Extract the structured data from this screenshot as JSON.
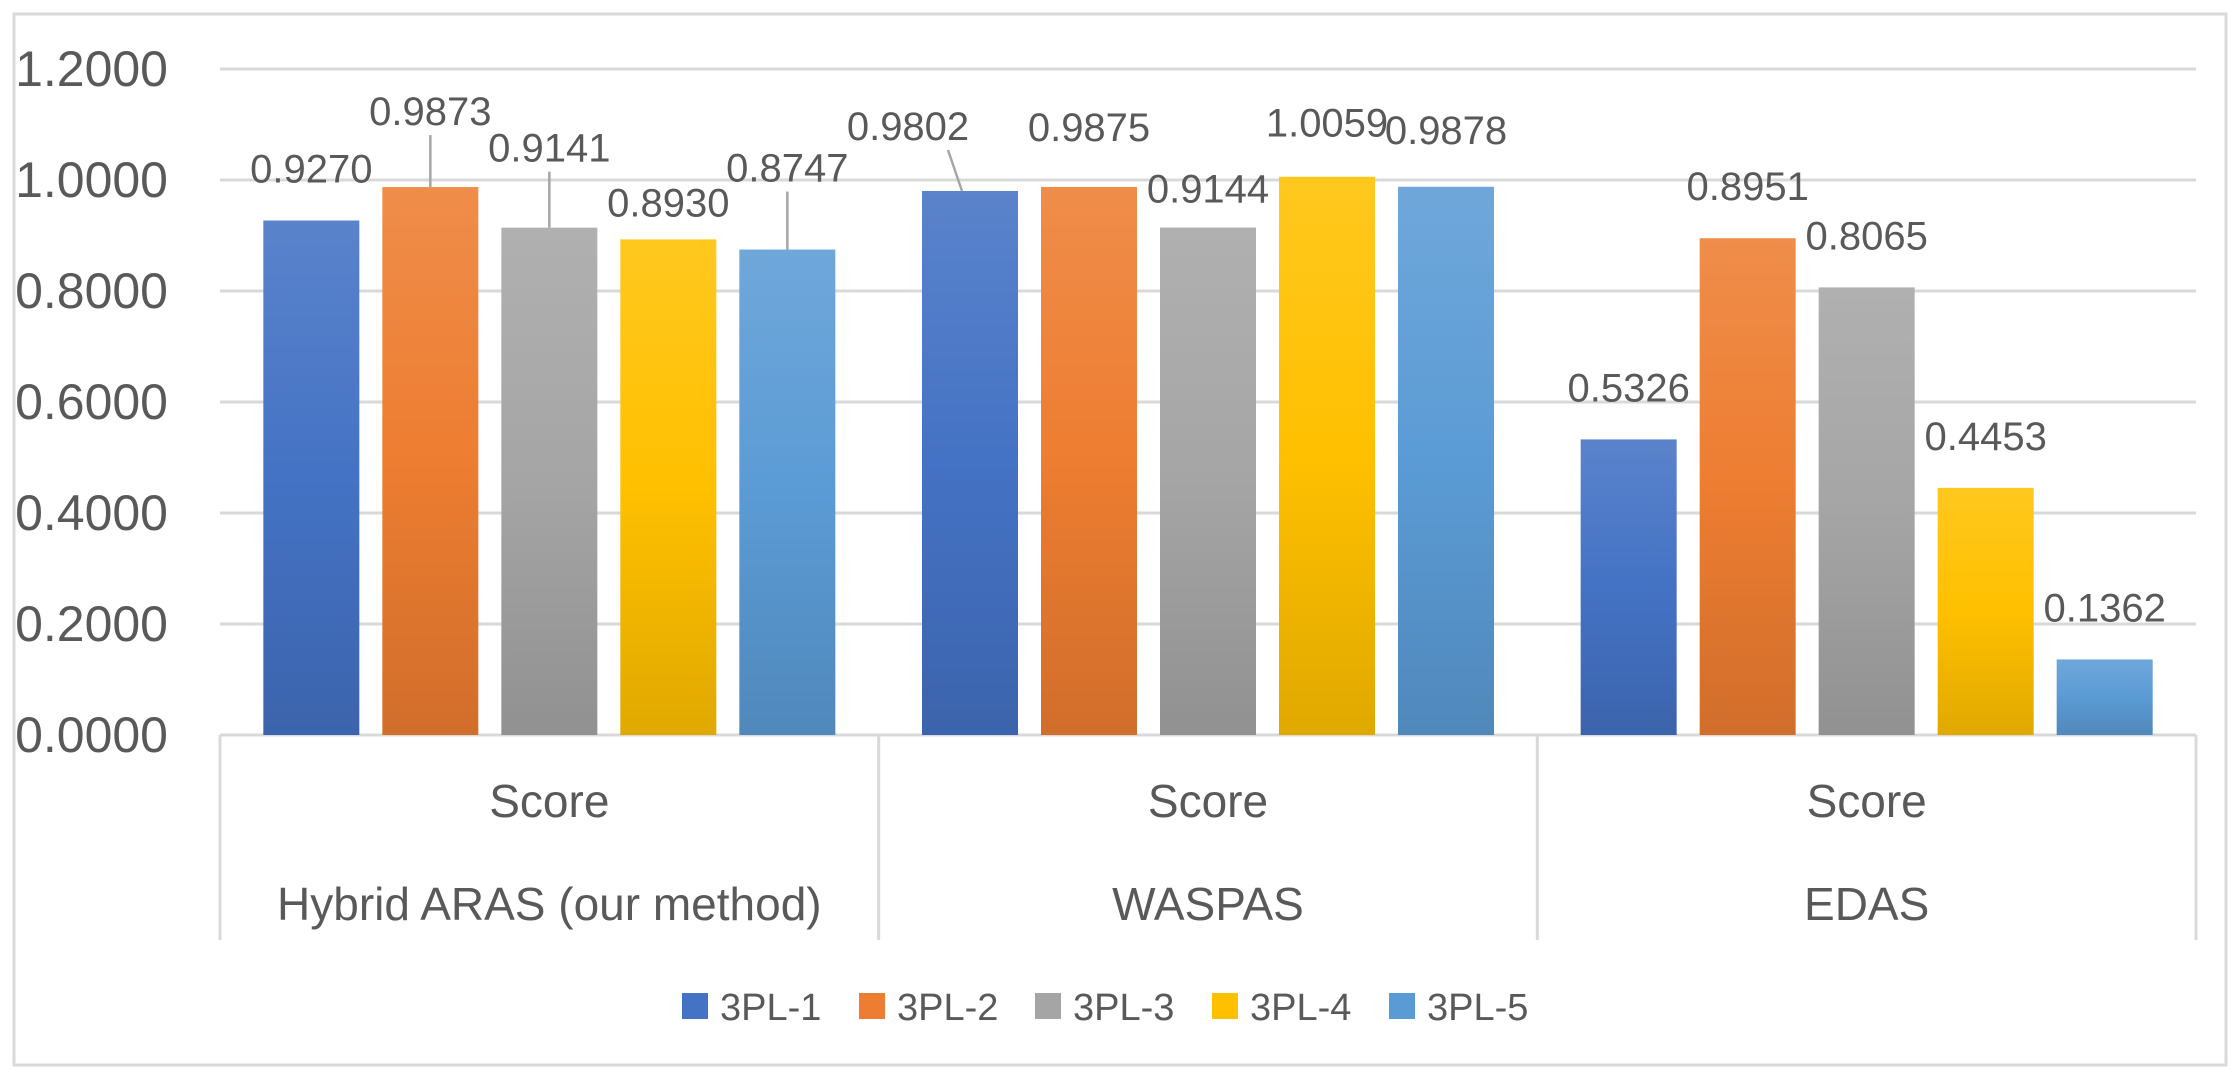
{
  "chart_data": {
    "type": "bar",
    "title": "",
    "xlabel": "",
    "ylabel": "",
    "ylim": [
      0,
      1.2
    ],
    "yticks": [
      "0.0000",
      "0.2000",
      "0.4000",
      "0.6000",
      "0.8000",
      "1.0000",
      "1.2000"
    ],
    "grid": true,
    "legend_position": "bottom",
    "groups": [
      {
        "category": "Score",
        "method": "Hybrid ARAS (our method)"
      },
      {
        "category": "Score",
        "method": "WASPAS"
      },
      {
        "category": "Score",
        "method": "EDAS"
      }
    ],
    "series": [
      {
        "name": "3PL-1",
        "color": "#4472C4",
        "values": [
          0.927,
          0.9802,
          0.5326
        ],
        "labels": [
          "0.9270",
          "0.9802",
          "0.5326"
        ]
      },
      {
        "name": "3PL-2",
        "color": "#ED7D31",
        "values": [
          0.9873,
          0.9875,
          0.8951
        ],
        "labels": [
          "0.9873",
          "0.9875",
          "0.8951"
        ]
      },
      {
        "name": "3PL-3",
        "color": "#A5A5A5",
        "values": [
          0.9141,
          0.9144,
          0.8065
        ],
        "labels": [
          "0.9141",
          "0.9144",
          "0.8065"
        ]
      },
      {
        "name": "3PL-4",
        "color": "#FFC000",
        "values": [
          0.893,
          1.0059,
          0.4453
        ],
        "labels": [
          "0.8930",
          "1.0059",
          "0.4453"
        ]
      },
      {
        "name": "3PL-5",
        "color": "#5B9BD5",
        "values": [
          0.8747,
          0.9878,
          0.1362
        ],
        "labels": [
          "0.8747",
          "0.9878",
          "0.1362"
        ]
      }
    ]
  }
}
